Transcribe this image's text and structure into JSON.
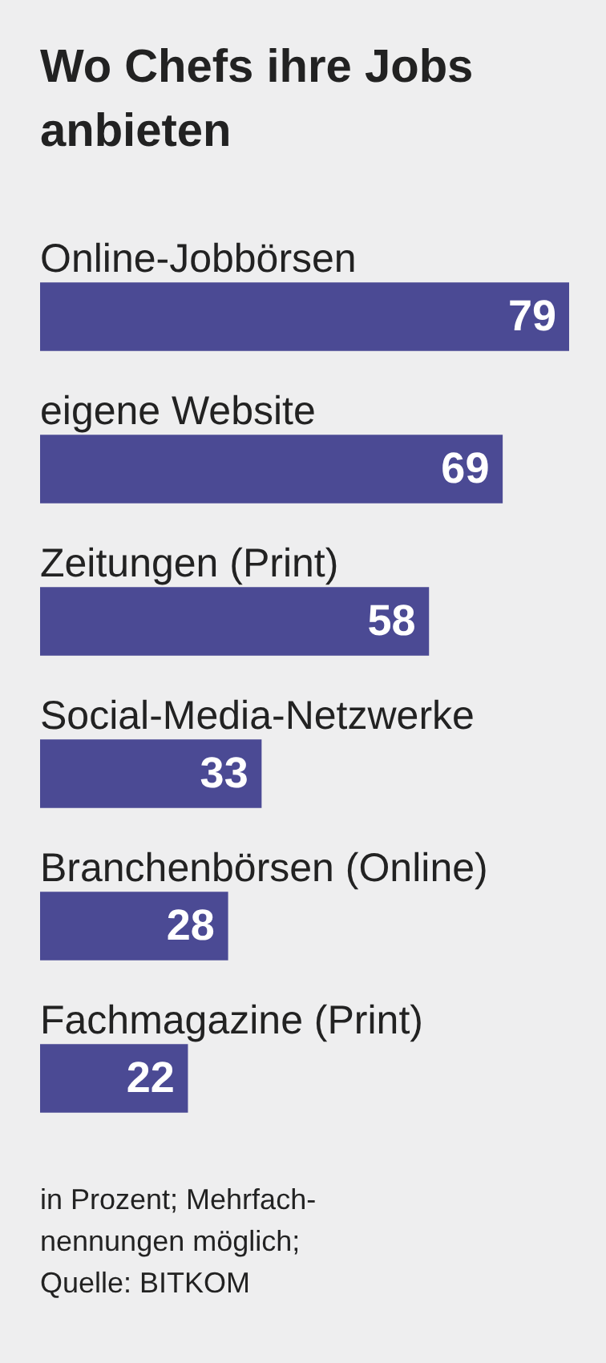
{
  "chart_data": {
    "type": "bar",
    "orientation": "horizontal",
    "title": "Wo Chefs ihre Jobs anbieten",
    "categories": [
      "Online-Jobbörsen",
      "eigene Website",
      "Zeitungen (Print)",
      "Social-Media-Netzwerke",
      "Branchenbörsen (Online)",
      "Fachmagazine (Print)"
    ],
    "values": [
      79,
      69,
      58,
      33,
      28,
      22
    ],
    "color": "#4b4a94",
    "data_labels": true,
    "annotations": [
      "in Prozent; Mehrfach-nennungen möglich;",
      "Quelle: BITKOM"
    ]
  }
}
